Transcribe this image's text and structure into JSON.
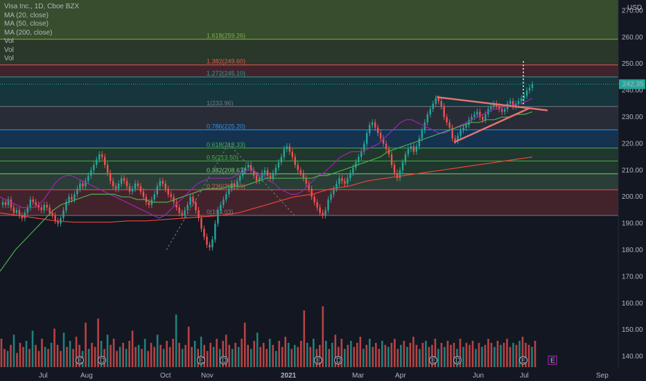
{
  "colors": {
    "background": "#131722",
    "up": "#26a69a",
    "down": "#ef5350",
    "ma20": "#9c27b0",
    "ma50": "#4caf50",
    "ma200": "#f44336",
    "trendline": "#e57373",
    "fib_1618": "#7cb342",
    "fib_1382": "#ef5350",
    "fib_1272": "#26a69a",
    "fib_1": "#787b86",
    "fib_0786": "#2196f3",
    "fib_0618": "#4caf50",
    "fib_05": "#4caf50",
    "fib_0382": "#81c784",
    "fib_0236": "#ef5350",
    "fib_0": "#787b86"
  },
  "legend": {
    "title": "Visa Inc., 1D, Cboe BZX",
    "ma20": "MA (20, close)",
    "ma50": "MA (50, close)",
    "ma200": "MA (200, close)",
    "vol1": "Vol",
    "vol2": "Vol",
    "vol3": "Vol"
  },
  "chart_data": {
    "type": "candlestick",
    "currency": "USD",
    "last_price": "242.35",
    "price_ticks": [
      "270.00",
      "260.00",
      "250.00",
      "240.00",
      "230.00",
      "220.00",
      "210.00",
      "200.00",
      "190.00",
      "180.00",
      "170.00",
      "160.00",
      "150.00",
      "140.00"
    ],
    "price_tick_values": [
      270,
      260,
      250,
      240,
      230,
      220,
      210,
      200,
      190,
      180,
      170,
      160,
      150,
      140
    ],
    "ylim": [
      136,
      274
    ],
    "x_ticks": [
      "Jul",
      "Aug",
      "Oct",
      "Nov",
      "2021",
      "Mar",
      "Apr",
      "Jun",
      "Jul",
      "Sep"
    ],
    "fib_levels": [
      {
        "label": "1.618(259.26)",
        "value": 259.26
      },
      {
        "label": "1.382(249.60)",
        "value": 249.6
      },
      {
        "label": "1.272(245.10)",
        "value": 245.1
      },
      {
        "label": "1(233.96)",
        "value": 233.96
      },
      {
        "label": "0.786(225.20)",
        "value": 225.2
      },
      {
        "label": "0.618(218.33)",
        "value": 218.33
      },
      {
        "label": "0.5(213.50)",
        "value": 213.5
      },
      {
        "label": "0.382(208.67)",
        "value": 208.67
      },
      {
        "label": "0.236(202.69)",
        "value": 202.69
      },
      {
        "label": "0(193.03)",
        "value": 193.03
      }
    ],
    "price_series": [
      198,
      197,
      199,
      196,
      194,
      195,
      193,
      192,
      194,
      196,
      199,
      198,
      197,
      196,
      195,
      197,
      196,
      194,
      193,
      191,
      190,
      192,
      195,
      198,
      200,
      199,
      201,
      203,
      205,
      204,
      206,
      208,
      210,
      212,
      214,
      216,
      215,
      212,
      209,
      206,
      204,
      203,
      205,
      207,
      206,
      204,
      202,
      203,
      205,
      204,
      202,
      200,
      198,
      197,
      199,
      201,
      204,
      206,
      205,
      203,
      201,
      200,
      198,
      196,
      194,
      193,
      195,
      197,
      200,
      198,
      195,
      192,
      188,
      185,
      182,
      181,
      184,
      190,
      195,
      197,
      199,
      201,
      203,
      205,
      204,
      206,
      208,
      210,
      211,
      212,
      210,
      208,
      206,
      207,
      209,
      210,
      208,
      207,
      209,
      211,
      213,
      215,
      218,
      219,
      217,
      215,
      212,
      210,
      209,
      207,
      205,
      203,
      200,
      198,
      196,
      194,
      193,
      195,
      199,
      201,
      203,
      205,
      207,
      206,
      205,
      207,
      209,
      211,
      213,
      215,
      217,
      220,
      224,
      227,
      228,
      226,
      224,
      222,
      220,
      218,
      216,
      212,
      209,
      207,
      210,
      213,
      216,
      218,
      219,
      217,
      219,
      222,
      225,
      228,
      231,
      233,
      235,
      237,
      236,
      234,
      230,
      228,
      226,
      222,
      221,
      223,
      225,
      226,
      227,
      229,
      230,
      231,
      232,
      230,
      229,
      231,
      233,
      234,
      235,
      234,
      233,
      232,
      233,
      235,
      236,
      234,
      235,
      236,
      237,
      238,
      240,
      241,
      242.35
    ],
    "ma20_series": [
      200,
      199,
      198,
      197,
      196,
      196,
      196,
      197,
      199,
      202,
      205,
      207,
      208,
      208,
      207,
      206,
      205,
      204,
      203,
      202,
      201,
      200,
      199,
      198,
      197,
      196,
      195,
      194,
      193,
      192,
      193,
      195,
      197,
      199,
      201,
      203,
      205,
      206,
      207,
      207,
      207,
      207,
      207,
      208,
      209,
      210,
      210,
      209,
      208,
      206,
      205,
      203,
      202,
      201,
      201,
      202,
      204,
      206,
      208,
      209,
      211,
      213,
      215,
      216,
      217,
      217,
      217,
      218,
      219,
      220,
      222,
      224,
      226,
      228,
      229,
      229,
      228,
      227,
      226,
      225,
      224,
      224,
      225,
      226,
      227,
      228,
      229,
      230,
      231,
      232,
      233,
      233,
      234,
      234,
      235,
      235,
      236,
      237
    ],
    "ma50_series": [
      172,
      176,
      180,
      183,
      186,
      189,
      192,
      195,
      197,
      198,
      199,
      200,
      201,
      201,
      201,
      201,
      200,
      200,
      199,
      199,
      198,
      198,
      198,
      199,
      200,
      201,
      202,
      203,
      203,
      203,
      204,
      204,
      204,
      205,
      206,
      207,
      207,
      207,
      207,
      207,
      207,
      207,
      208,
      208,
      209,
      210,
      211,
      212,
      213,
      214,
      215,
      217,
      218,
      219,
      220,
      221,
      222,
      223,
      224,
      225,
      226,
      227,
      228,
      228,
      229,
      229,
      230,
      230,
      231,
      231,
      232
    ],
    "ma200_series": [
      194,
      193,
      192,
      191,
      190.5,
      190.5,
      190.5,
      191,
      191,
      191.5,
      192,
      192.5,
      193,
      194,
      196,
      198,
      200,
      201,
      203,
      204,
      206,
      207,
      208,
      209,
      210,
      211,
      212,
      213,
      214,
      215
    ],
    "volume_series": [
      14,
      9,
      8,
      11,
      16,
      7,
      12,
      10,
      13,
      9,
      18,
      11,
      8,
      14,
      10,
      9,
      12,
      19,
      11,
      8,
      17,
      10,
      13,
      9,
      15,
      11,
      8,
      22,
      9,
      12,
      10,
      24,
      13,
      9,
      16,
      11,
      14,
      8,
      10,
      12,
      9,
      13,
      18,
      10,
      11,
      9,
      14,
      8,
      12,
      10,
      16,
      11,
      9,
      13,
      10,
      14,
      26,
      12,
      9,
      11,
      20,
      10,
      13,
      9,
      15,
      11,
      8,
      12,
      10,
      14,
      9,
      13,
      16,
      11,
      9,
      12,
      10,
      14,
      22,
      11,
      9,
      13,
      17,
      10,
      12,
      9,
      14,
      11,
      8,
      13,
      10,
      15,
      12,
      9,
      11,
      10,
      13,
      28,
      12,
      10,
      14,
      9,
      11,
      30,
      13,
      9,
      12,
      16,
      10,
      14,
      9,
      11,
      13,
      10,
      12,
      15,
      9,
      11,
      14,
      10,
      12,
      9,
      13,
      11,
      10,
      12,
      14,
      9,
      11,
      13,
      10,
      12,
      15,
      11,
      9,
      12,
      13,
      10,
      11,
      14,
      9,
      12,
      10,
      13,
      11,
      12,
      9,
      14,
      10,
      12,
      11,
      13,
      9,
      12,
      10,
      11,
      14,
      12,
      10,
      13,
      11,
      12,
      14,
      10,
      12,
      11,
      13,
      15,
      12,
      11,
      10,
      13
    ],
    "earnings_markers": [
      "E",
      "D",
      "E",
      "D",
      "E",
      "D",
      "E",
      "D",
      "E"
    ],
    "future_marker": "E"
  }
}
